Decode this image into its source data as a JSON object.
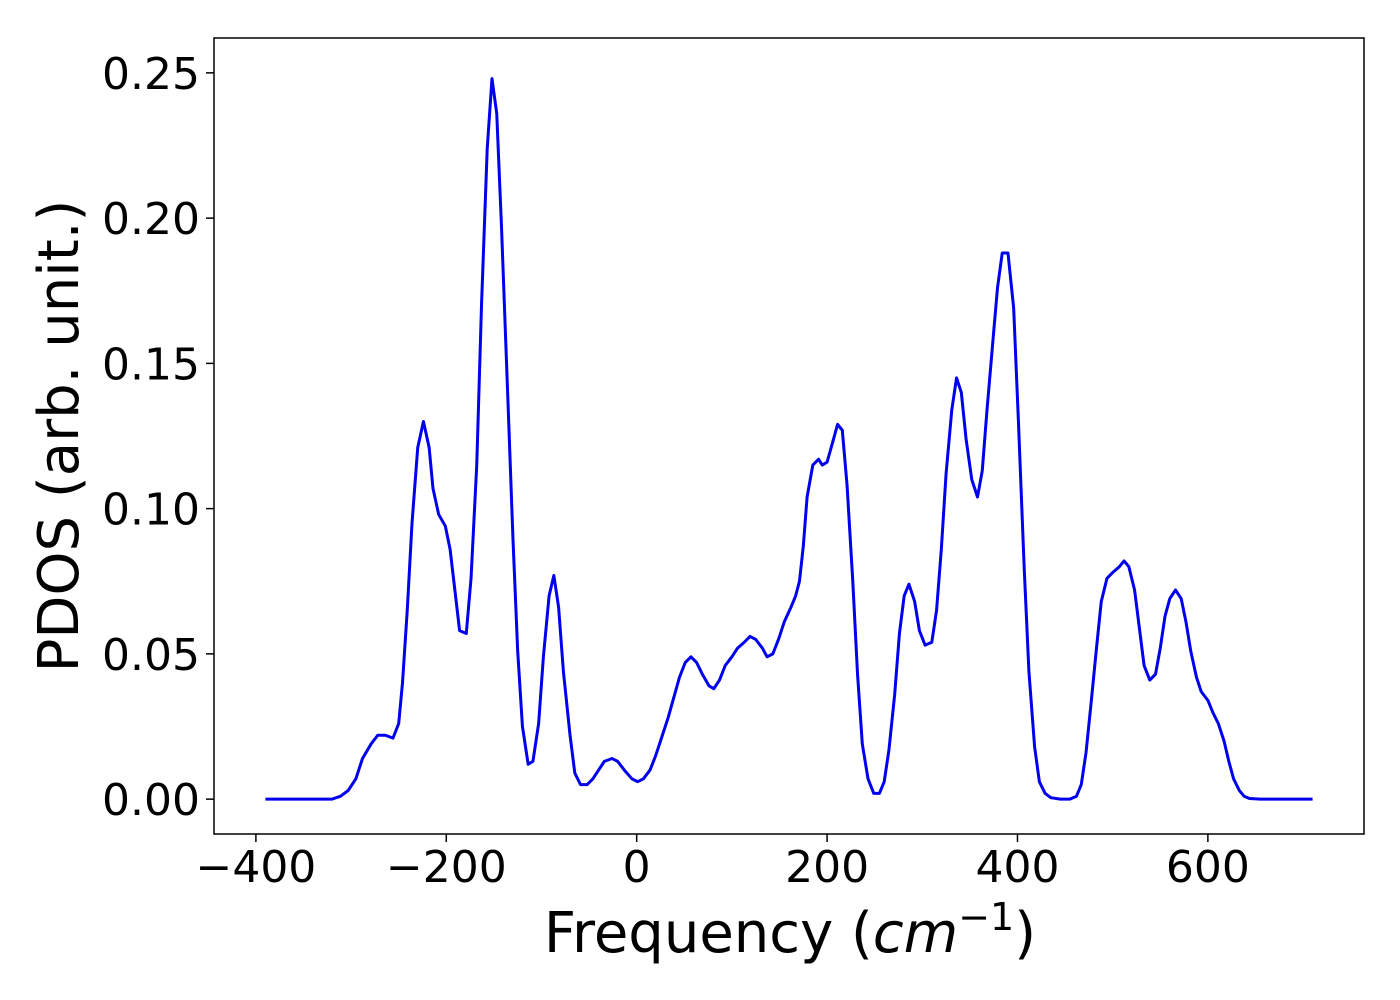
{
  "chart_data": {
    "type": "line",
    "ylabel": "PDOS (arb. unit.)",
    "xlabel": [
      "Frequency (",
      "cm",
      "−1",
      ")"
    ],
    "xlim": [
      -444,
      764
    ],
    "ylim": [
      -0.012,
      0.262
    ],
    "xticks": [
      {
        "value": -400,
        "label": "−400"
      },
      {
        "value": -200,
        "label": "−200"
      },
      0,
      200,
      400,
      600
    ],
    "yticks": [
      {
        "value": 0,
        "label": "0.00"
      },
      {
        "value": 0.05,
        "label": "0.05"
      },
      {
        "value": 0.1,
        "label": "0.10"
      },
      {
        "value": 0.15,
        "label": "0.15"
      },
      {
        "value": 0.2,
        "label": "0.20"
      },
      {
        "value": 0.25,
        "label": "0.25"
      }
    ],
    "grid": false,
    "series": [
      {
        "color": "#0000ee",
        "x": [
          -390,
          -360,
          -330,
          -320,
          -311,
          -303,
          -295,
          -288,
          -279,
          -272,
          -264,
          -256,
          -250,
          -246,
          -241,
          -236,
          -230,
          -224,
          -218,
          -214,
          -208,
          -201,
          -196,
          -191,
          -186,
          -179,
          -174,
          -168,
          -163,
          -157,
          -152,
          -147,
          -142,
          -135,
          -130,
          -125,
          -120,
          -114,
          -109,
          -103,
          -98,
          -92,
          -87,
          -82,
          -77,
          -70,
          -65,
          -59,
          -52,
          -46,
          -40,
          -34,
          -26,
          -20,
          -13,
          -5,
          1,
          7,
          14,
          20,
          26,
          33,
          39,
          45,
          51,
          57,
          63,
          69,
          76,
          81,
          87,
          93,
          100,
          106,
          113,
          119,
          125,
          132,
          137,
          143,
          149,
          155,
          162,
          167,
          171,
          175,
          179,
          185,
          191,
          195,
          200,
          206,
          211,
          216,
          221,
          227,
          232,
          237,
          243,
          249,
          255,
          260,
          265,
          271,
          276,
          281,
          286,
          292,
          297,
          303,
          310,
          315,
          320,
          325,
          331,
          336,
          341,
          346,
          352,
          358,
          363,
          368,
          374,
          379,
          384,
          390,
          396,
          401,
          407,
          412,
          418,
          423,
          429,
          435,
          445,
          455,
          462,
          467,
          472,
          477,
          483,
          488,
          494,
          500,
          507,
          512,
          517,
          523,
          528,
          533,
          539,
          545,
          550,
          555,
          560,
          566,
          572,
          577,
          582,
          588,
          593,
          600,
          605,
          611,
          617,
          622,
          627,
          633,
          638,
          644,
          655,
          680,
          710
        ],
        "values": [
          0,
          0,
          0,
          0,
          0.001,
          0.003,
          0.007,
          0.014,
          0.019,
          0.022,
          0.022,
          0.021,
          0.026,
          0.04,
          0.065,
          0.095,
          0.121,
          0.13,
          0.121,
          0.107,
          0.098,
          0.094,
          0.086,
          0.072,
          0.058,
          0.057,
          0.076,
          0.115,
          0.17,
          0.224,
          0.248,
          0.236,
          0.197,
          0.135,
          0.09,
          0.051,
          0.025,
          0.012,
          0.013,
          0.026,
          0.049,
          0.07,
          0.077,
          0.066,
          0.044,
          0.022,
          0.009,
          0.005,
          0.005,
          0.007,
          0.01,
          0.013,
          0.014,
          0.013,
          0.01,
          0.007,
          0.006,
          0.007,
          0.01,
          0.015,
          0.021,
          0.028,
          0.035,
          0.042,
          0.047,
          0.049,
          0.047,
          0.043,
          0.039,
          0.038,
          0.041,
          0.046,
          0.049,
          0.052,
          0.054,
          0.056,
          0.055,
          0.052,
          0.049,
          0.05,
          0.055,
          0.061,
          0.066,
          0.07,
          0.075,
          0.087,
          0.104,
          0.115,
          0.117,
          0.115,
          0.116,
          0.123,
          0.129,
          0.127,
          0.108,
          0.075,
          0.043,
          0.019,
          0.007,
          0.002,
          0.002,
          0.006,
          0.017,
          0.036,
          0.057,
          0.07,
          0.074,
          0.068,
          0.058,
          0.053,
          0.054,
          0.065,
          0.086,
          0.112,
          0.134,
          0.145,
          0.14,
          0.124,
          0.11,
          0.104,
          0.113,
          0.134,
          0.157,
          0.176,
          0.188,
          0.188,
          0.169,
          0.13,
          0.08,
          0.044,
          0.018,
          0.006,
          0.002,
          0.0005,
          0,
          0,
          0.001,
          0.005,
          0.016,
          0.032,
          0.052,
          0.068,
          0.076,
          0.078,
          0.08,
          0.082,
          0.08,
          0.072,
          0.059,
          0.046,
          0.041,
          0.043,
          0.052,
          0.063,
          0.069,
          0.072,
          0.069,
          0.061,
          0.051,
          0.042,
          0.037,
          0.034,
          0.03,
          0.026,
          0.02,
          0.013,
          0.007,
          0.003,
          0.001,
          0.0002,
          0,
          0,
          0
        ]
      }
    ]
  }
}
